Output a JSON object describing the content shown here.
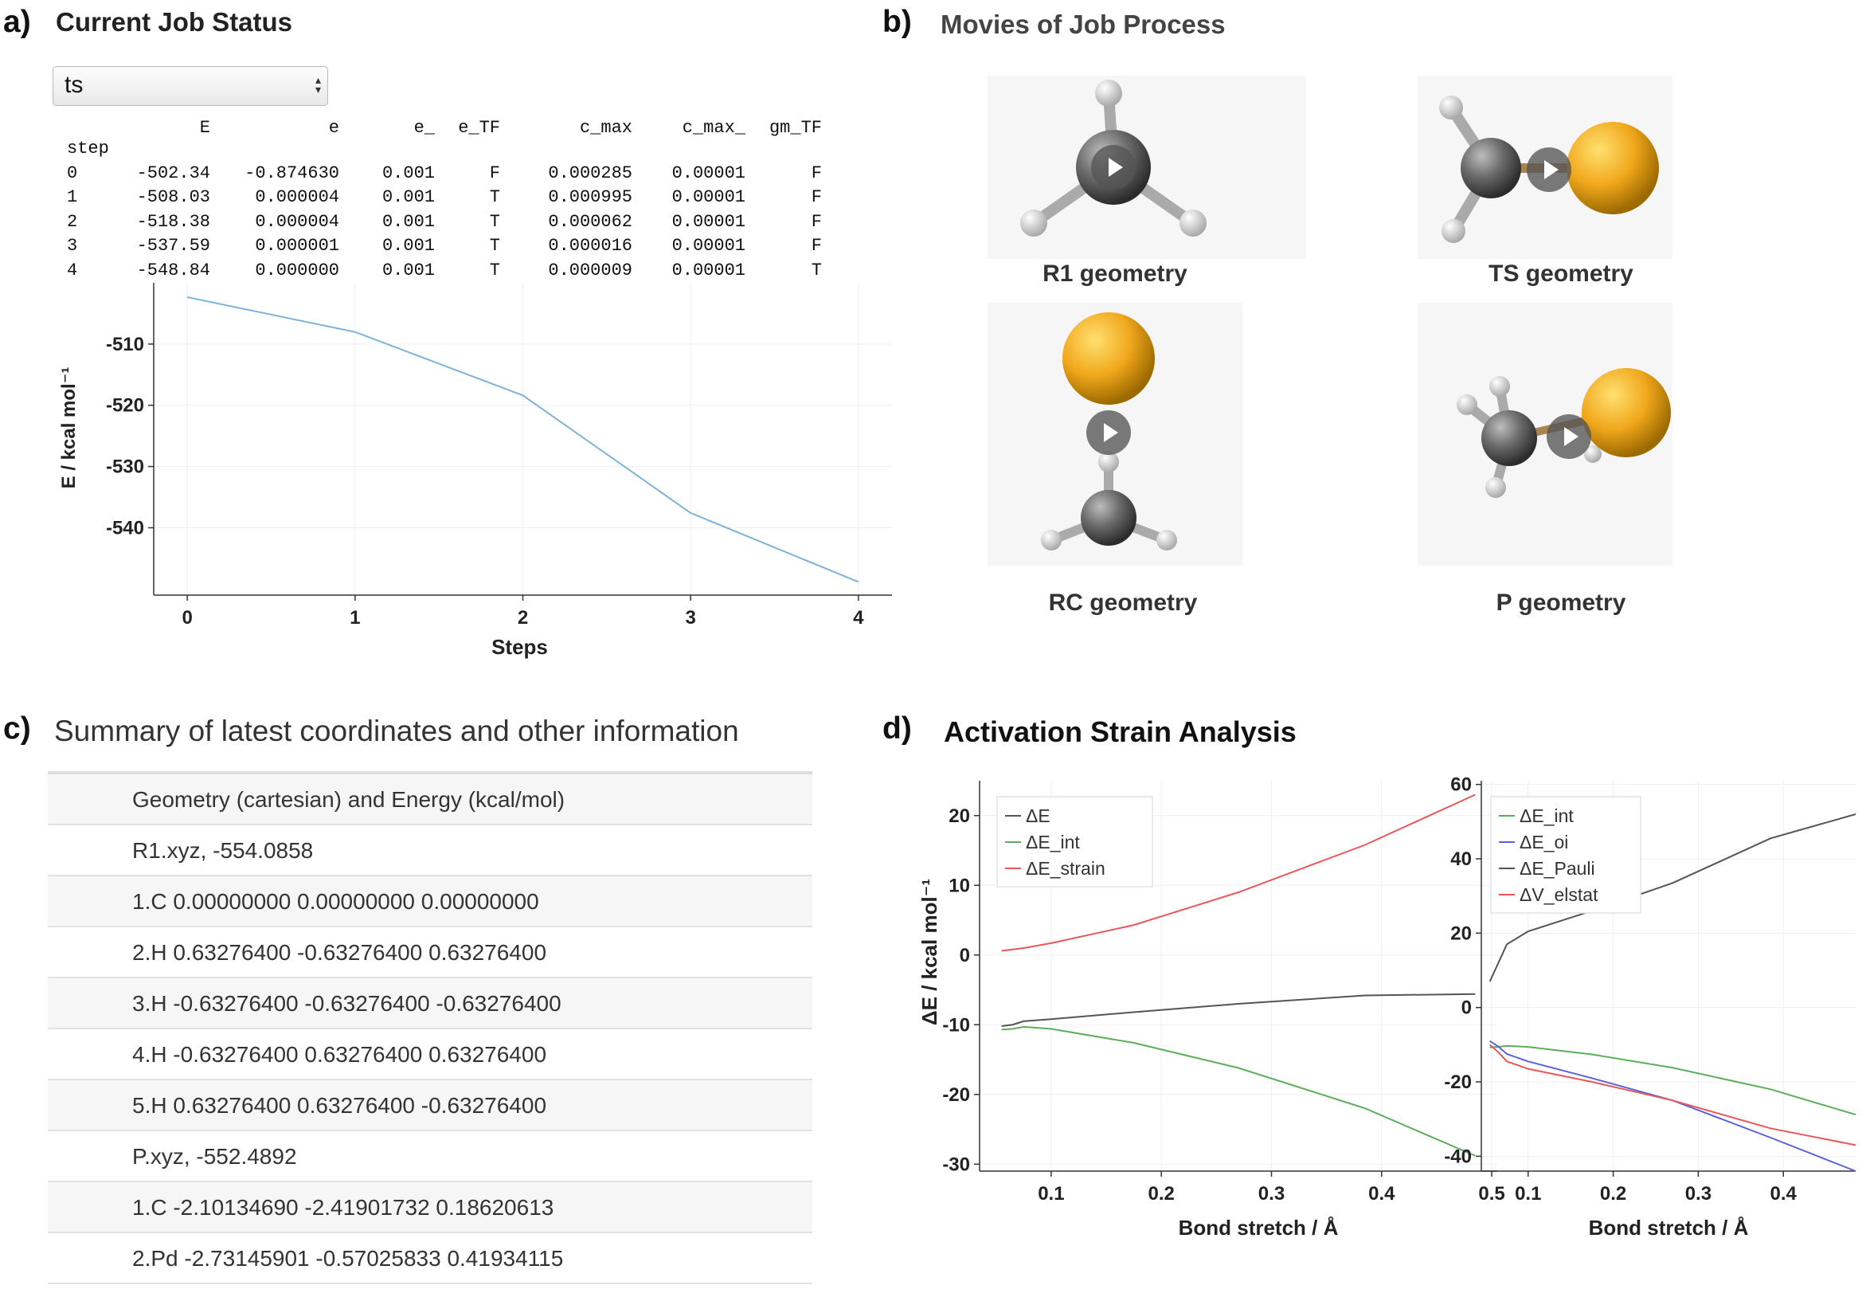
{
  "panel_a": {
    "label": "a)",
    "title": "Current Job Status",
    "select_value": "ts",
    "table": {
      "index_label": "step",
      "columns": [
        "E",
        "e",
        "e_",
        "e_TF",
        "c_max",
        "c_max_",
        "gm_TF"
      ],
      "rows": [
        [
          "0",
          "-502.34",
          "-0.874630",
          "0.001",
          "F",
          "0.000285",
          "0.00001",
          "F"
        ],
        [
          "1",
          "-508.03",
          "0.000004",
          "0.001",
          "T",
          "0.000995",
          "0.00001",
          "F"
        ],
        [
          "2",
          "-518.38",
          "0.000004",
          "0.001",
          "T",
          "0.000062",
          "0.00001",
          "F"
        ],
        [
          "3",
          "-537.59",
          "0.000001",
          "0.001",
          "T",
          "0.000016",
          "0.00001",
          "F"
        ],
        [
          "4",
          "-548.84",
          "0.000000",
          "0.001",
          "T",
          "0.000009",
          "0.00001",
          "T"
        ]
      ]
    }
  },
  "panel_b": {
    "label": "b)",
    "title": "Movies of Job Process",
    "movies": [
      {
        "caption": "R1 geometry"
      },
      {
        "caption": "TS geometry"
      },
      {
        "caption": "RC geometry"
      },
      {
        "caption": "P geometry"
      }
    ]
  },
  "panel_c": {
    "label": "c)",
    "title": "Summary of latest coordinates and other information",
    "rows": [
      "Geometry (cartesian) and Energy (kcal/mol)",
      "R1.xyz, -554.0858",
      "1.C 0.00000000 0.00000000 0.00000000",
      "2.H 0.63276400 -0.63276400 0.63276400",
      "3.H -0.63276400 -0.63276400 -0.63276400",
      "4.H -0.63276400 0.63276400 0.63276400",
      "5.H 0.63276400 0.63276400 -0.63276400",
      "P.xyz, -552.4892",
      "1.C -2.10134690 -2.41901732 0.18620613",
      "2.Pd -2.73145901 -0.57025833 0.41934115"
    ]
  },
  "panel_d": {
    "label": "d)",
    "title": "Activation Strain Analysis"
  },
  "colors": {
    "blue": "#7fb2d8",
    "black": "#555555",
    "green": "#5cae5c",
    "red": "#e8585a",
    "indigo": "#5a62d8"
  },
  "chart_data": [
    {
      "type": "line",
      "x": [
        0,
        1,
        2,
        3,
        4
      ],
      "series": [
        {
          "values": [
            -502.34,
            -508.03,
            -518.38,
            -537.59,
            -548.84
          ],
          "color": "#7fb2d8"
        }
      ],
      "xlabel": "Steps",
      "ylabel": "E / kcal mol⁻¹",
      "xticks": [
        0,
        1,
        2,
        3,
        4
      ],
      "yticks": [
        -510,
        -520,
        -530,
        -540
      ],
      "xlim": [
        -0.2,
        4.2
      ],
      "ylim": [
        -551,
        -500
      ],
      "grid": true
    },
    {
      "type": "line",
      "xlabel": "Bond stretch / Å",
      "ylabel": "ΔE / kcal mol⁻¹",
      "xticks": [
        0.1,
        0.2,
        0.3,
        0.4,
        0.5
      ],
      "yticks": [
        20,
        10,
        0,
        -10,
        -20,
        -30
      ],
      "xlim": [
        0.035,
        0.505
      ],
      "ylim": [
        -31,
        25
      ],
      "legend": "top-left",
      "grid": true,
      "series": [
        {
          "name": "ΔE",
          "color": "#555555",
          "x": [
            0.055,
            0.065,
            0.075,
            0.1,
            0.175,
            0.27,
            0.385,
            0.485
          ],
          "values": [
            -10.2,
            -10.0,
            -9.5,
            -9.2,
            -8.2,
            -7.0,
            -5.8,
            -5.6
          ]
        },
        {
          "name": "ΔE_int",
          "color": "#5cae5c",
          "x": [
            0.055,
            0.065,
            0.075,
            0.1,
            0.175,
            0.27,
            0.385,
            0.485
          ],
          "values": [
            -10.7,
            -10.6,
            -10.3,
            -10.6,
            -12.6,
            -16.2,
            -22.0,
            -28.8
          ]
        },
        {
          "name": "ΔE_strain",
          "color": "#e8585a",
          "x": [
            0.055,
            0.065,
            0.075,
            0.1,
            0.175,
            0.27,
            0.385,
            0.485
          ],
          "values": [
            0.6,
            0.8,
            1.0,
            1.7,
            4.3,
            9.0,
            15.8,
            23.0
          ]
        }
      ]
    },
    {
      "type": "line",
      "xlabel": "Bond stretch / Å",
      "xticks": [
        0.1,
        0.2,
        0.3,
        0.4
      ],
      "yticks": [
        60,
        40,
        20,
        0,
        -20,
        -40
      ],
      "xlim": [
        0.045,
        0.485
      ],
      "ylim": [
        -44,
        61
      ],
      "legend": "top-left",
      "grid": true,
      "series": [
        {
          "name": "ΔE_int",
          "color": "#5cae5c",
          "x": [
            0.055,
            0.065,
            0.075,
            0.1,
            0.175,
            0.27,
            0.385,
            0.485
          ],
          "values": [
            -10.7,
            -10.6,
            -10.3,
            -10.6,
            -12.6,
            -16.2,
            -22.0,
            -28.8
          ]
        },
        {
          "name": "ΔE_oi",
          "color": "#5a62d8",
          "x": [
            0.055,
            0.065,
            0.075,
            0.1,
            0.175,
            0.27,
            0.385,
            0.485
          ],
          "values": [
            -9.0,
            -10.5,
            -12.5,
            -14.5,
            -19.0,
            -25.0,
            -35.0,
            -44.0
          ]
        },
        {
          "name": "ΔE_Pauli",
          "color": "#555555",
          "x": [
            0.055,
            0.065,
            0.075,
            0.1,
            0.175,
            0.27,
            0.385,
            0.485
          ],
          "values": [
            7.0,
            12.0,
            17.0,
            20.5,
            26.0,
            33.5,
            45.5,
            52.0
          ]
        },
        {
          "name": "ΔV_elstat",
          "color": "#e8585a",
          "x": [
            0.055,
            0.065,
            0.075,
            0.1,
            0.175,
            0.27,
            0.385,
            0.485
          ],
          "values": [
            -10.0,
            -12.0,
            -14.5,
            -16.5,
            -20.0,
            -25.0,
            -32.5,
            -37.0
          ]
        }
      ]
    }
  ]
}
